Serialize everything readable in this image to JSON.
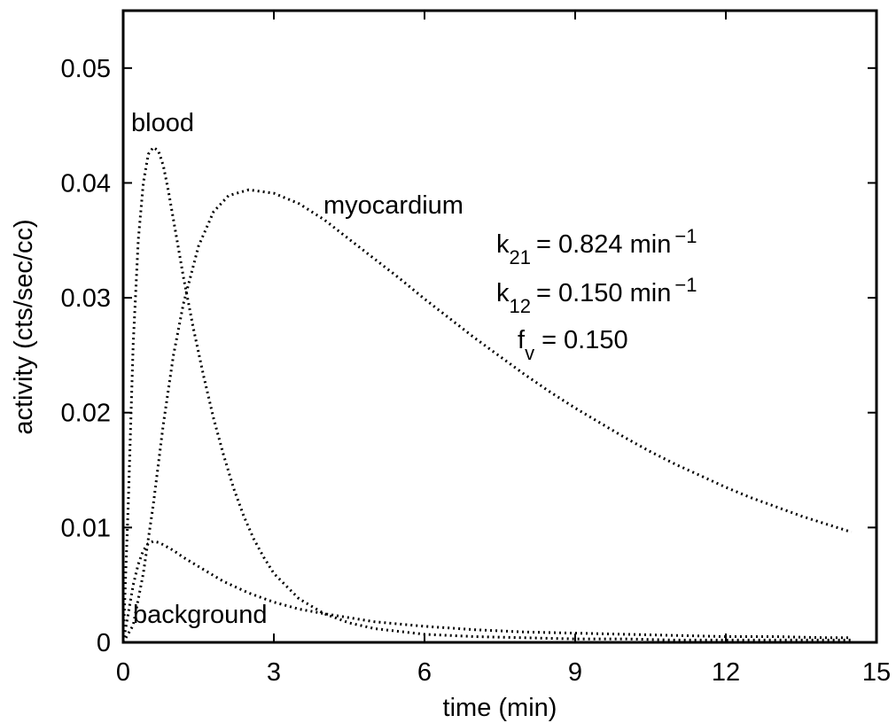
{
  "chart_data": {
    "type": "line",
    "xlabel": "time (min)",
    "ylabel": "activity (cts/sec/cc)",
    "xlim": [
      0,
      15
    ],
    "ylim": [
      0,
      0.055
    ],
    "xticks": [
      0,
      3,
      6,
      9,
      12,
      15
    ],
    "yticks": [
      0,
      0.01,
      0.02,
      0.03,
      0.04,
      0.05
    ],
    "xtick_labels": [
      "0",
      "3",
      "6",
      "9",
      "12",
      "15"
    ],
    "ytick_labels": [
      "0",
      "0.01",
      "0.02",
      "0.03",
      "0.04",
      "0.05"
    ],
    "grid": false,
    "line_style": "dotted",
    "series_color": "#000000",
    "series": [
      {
        "name": "blood",
        "x": [
          0,
          0.1,
          0.2,
          0.3,
          0.4,
          0.5,
          0.6,
          0.7,
          0.8,
          0.9,
          1.0,
          1.2,
          1.4,
          1.6,
          1.8,
          2.0,
          2.2,
          2.4,
          2.6,
          2.8,
          3.0,
          3.5,
          4.0,
          4.5,
          5.0,
          6.0,
          7.0,
          8.0,
          9.0,
          10.0,
          11.0,
          12.0,
          13.0,
          14.0,
          14.5
        ],
        "y": [
          0,
          0.012,
          0.026,
          0.035,
          0.04,
          0.0425,
          0.0431,
          0.0428,
          0.0415,
          0.0393,
          0.0368,
          0.0318,
          0.0273,
          0.0232,
          0.0195,
          0.0163,
          0.0134,
          0.011,
          0.009,
          0.0074,
          0.006,
          0.0038,
          0.0025,
          0.0017,
          0.0012,
          0.0007,
          0.0005,
          0.0004,
          0.0003,
          0.0003,
          0.0002,
          0.0002,
          0.0002,
          0.0002,
          0.0002
        ]
      },
      {
        "name": "myocardium",
        "x": [
          0,
          0.2,
          0.4,
          0.6,
          0.8,
          1.0,
          1.2,
          1.5,
          1.8,
          2.1,
          2.5,
          3.0,
          3.5,
          4.0,
          4.5,
          5.0,
          5.5,
          6.0,
          6.5,
          7.0,
          7.5,
          8.0,
          8.5,
          9.0,
          9.5,
          10.0,
          10.5,
          11.0,
          11.5,
          12.0,
          12.5,
          13.0,
          13.5,
          14.0,
          14.5
        ],
        "y": [
          0,
          0.0015,
          0.006,
          0.012,
          0.019,
          0.025,
          0.0295,
          0.0345,
          0.0375,
          0.0389,
          0.0394,
          0.0391,
          0.0382,
          0.0368,
          0.0351,
          0.0334,
          0.0317,
          0.0299,
          0.0282,
          0.0265,
          0.0249,
          0.0233,
          0.0218,
          0.0204,
          0.0191,
          0.0178,
          0.0166,
          0.0155,
          0.0145,
          0.0135,
          0.0126,
          0.0118,
          0.011,
          0.0103,
          0.0096
        ]
      },
      {
        "name": "background",
        "x": [
          0,
          0.1,
          0.2,
          0.3,
          0.4,
          0.5,
          0.6,
          0.7,
          0.8,
          1.0,
          1.2,
          1.5,
          2.0,
          2.5,
          3.0,
          3.5,
          4.0,
          5.0,
          6.0,
          7.0,
          8.0,
          9.0,
          10.0,
          11.0,
          12.0,
          13.0,
          14.0,
          14.5
        ],
        "y": [
          0,
          0.0025,
          0.005,
          0.0068,
          0.008,
          0.0086,
          0.0088,
          0.0087,
          0.0085,
          0.008,
          0.0074,
          0.0066,
          0.0053,
          0.0043,
          0.0035,
          0.0029,
          0.0025,
          0.0018,
          0.0014,
          0.0011,
          0.0009,
          0.0008,
          0.0007,
          0.0006,
          0.0005,
          0.0005,
          0.0004,
          0.0004
        ]
      }
    ],
    "annotations": {
      "blood": "blood",
      "myocardium": "myocardium",
      "background": "background",
      "k21_base": "k",
      "k21_sub": "21",
      "k21_value": "= 0.824 min",
      "k21_sup": "−1",
      "k12_base": "k",
      "k12_sub": "12",
      "k12_value": "= 0.150 min",
      "k12_sup": "−1",
      "fv_base": "f",
      "fv_sub": "v",
      "fv_value": "= 0.150"
    }
  }
}
